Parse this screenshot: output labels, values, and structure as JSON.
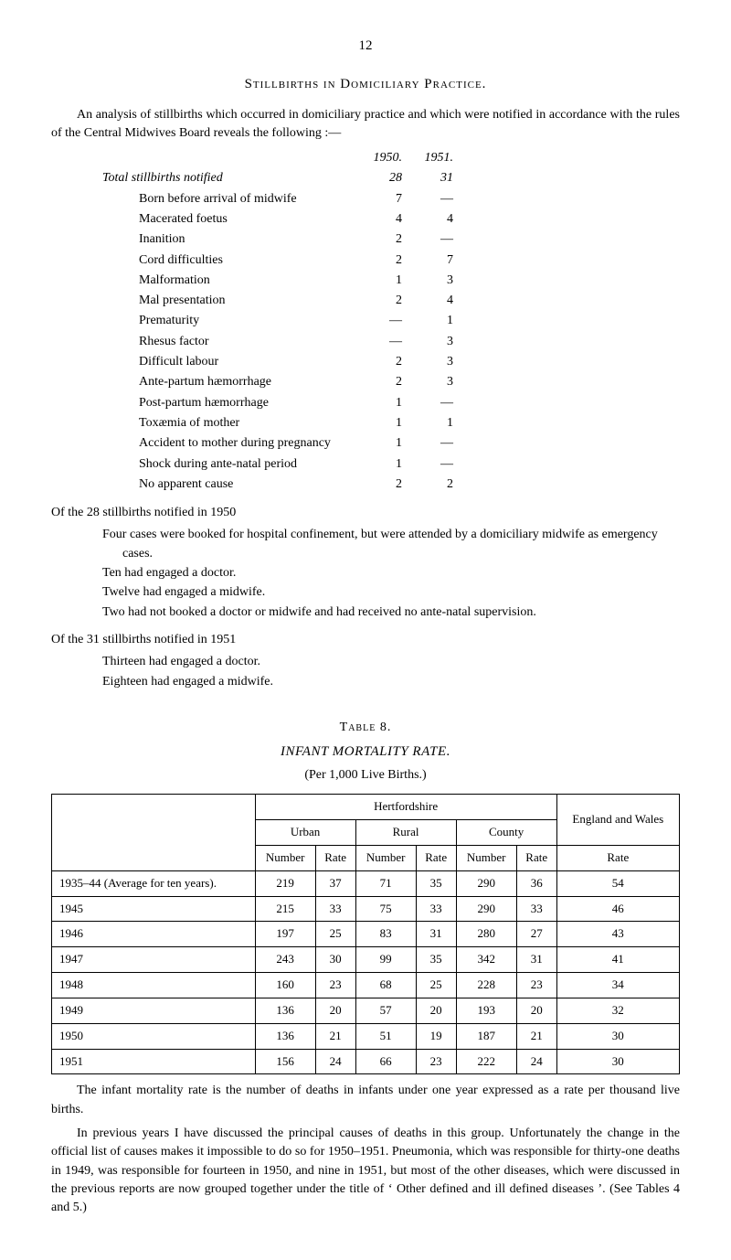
{
  "page_number": "12",
  "section_heading": "Stillbirths in Domiciliary Practice.",
  "intro_para": "An analysis of stillbirths which occurred in domiciliary practice and which were notified in accordance with the rules of the Central Midwives Board reveals the following :—",
  "stats": {
    "year_a": "1950.",
    "year_b": "1951.",
    "rows": [
      {
        "label": "Total stillbirths notified",
        "indent": 0,
        "italic": true,
        "a": "28",
        "b": "31"
      },
      {
        "label": "Born before arrival of midwife",
        "indent": 1,
        "a": "7",
        "b": "—"
      },
      {
        "label": "Macerated foetus",
        "indent": 1,
        "a": "4",
        "b": "4"
      },
      {
        "label": "Inanition",
        "indent": 1,
        "a": "2",
        "b": "—"
      },
      {
        "label": "Cord difficulties",
        "indent": 1,
        "a": "2",
        "b": "7"
      },
      {
        "label": "Malformation",
        "indent": 1,
        "a": "1",
        "b": "3"
      },
      {
        "label": "Mal presentation",
        "indent": 1,
        "a": "2",
        "b": "4"
      },
      {
        "label": "Prematurity",
        "indent": 1,
        "a": "—",
        "b": "1"
      },
      {
        "label": "Rhesus factor",
        "indent": 1,
        "a": "—",
        "b": "3"
      },
      {
        "label": "Difficult labour",
        "indent": 1,
        "a": "2",
        "b": "3"
      },
      {
        "label": "Ante-partum hæmorrhage",
        "indent": 1,
        "a": "2",
        "b": "3"
      },
      {
        "label": "Post-partum hæmorrhage",
        "indent": 1,
        "a": "1",
        "b": "—"
      },
      {
        "label": "Toxæmia of mother",
        "indent": 1,
        "a": "1",
        "b": "1"
      },
      {
        "label": "Accident to mother during pregnancy",
        "indent": 1,
        "a": "1",
        "b": "—"
      },
      {
        "label": "Shock during ante-natal period",
        "indent": 1,
        "a": "1",
        "b": "—"
      },
      {
        "label": "No apparent cause",
        "indent": 1,
        "a": "2",
        "b": "2"
      }
    ]
  },
  "sub_1950_heading": "Of the 28 stillbirths notified in 1950",
  "sub_1950_lines": [
    "Four cases were booked for hospital confinement, but were attended by a domiciliary midwife as emergency cases.",
    "Ten had engaged a doctor.",
    "Twelve had engaged a midwife.",
    "Two had not booked a doctor or midwife and had received no ante-natal supervision."
  ],
  "sub_1951_heading": "Of the 31 stillbirths notified in 1951",
  "sub_1951_lines": [
    "Thirteen had engaged a doctor.",
    "Eighteen had engaged a midwife."
  ],
  "table8": {
    "title": "Table 8.",
    "subtitle": "INFANT MORTALITY RATE.",
    "caption": "(Per 1,000 Live Births.)",
    "header_group": "Hertfordshire",
    "header_eng": "England and Wales",
    "col_groups": [
      "Urban",
      "Rural",
      "County"
    ],
    "subcols": [
      "Number",
      "Rate"
    ],
    "rate_col": "Rate",
    "rows": [
      {
        "label": "1935–44 (Average for ten years).",
        "vals": [
          "219",
          "37",
          "71",
          "35",
          "290",
          "36",
          "54"
        ]
      },
      {
        "label": "1945",
        "vals": [
          "215",
          "33",
          "75",
          "33",
          "290",
          "33",
          "46"
        ]
      },
      {
        "label": "1946",
        "vals": [
          "197",
          "25",
          "83",
          "31",
          "280",
          "27",
          "43"
        ]
      },
      {
        "label": "1947",
        "vals": [
          "243",
          "30",
          "99",
          "35",
          "342",
          "31",
          "41"
        ]
      },
      {
        "label": "1948",
        "vals": [
          "160",
          "23",
          "68",
          "25",
          "228",
          "23",
          "34"
        ]
      },
      {
        "label": "1949",
        "vals": [
          "136",
          "20",
          "57",
          "20",
          "193",
          "20",
          "32"
        ]
      },
      {
        "label": "1950",
        "vals": [
          "136",
          "21",
          "51",
          "19",
          "187",
          "21",
          "30"
        ]
      },
      {
        "label": "1951",
        "vals": [
          "156",
          "24",
          "66",
          "23",
          "222",
          "24",
          "30"
        ]
      }
    ]
  },
  "closing_para_1": "The infant mortality rate is the number of deaths in infants under one year expressed as a rate per thousand live births.",
  "closing_para_2": "In previous years I have discussed the principal causes of deaths in this group. Unfortunately the change in the official list of causes makes it impossible to do so for 1950–1951. Pneumonia, which was responsible for thirty-one deaths in 1949, was responsible for fourteen in 1950, and nine in 1951, but most of the other diseases, which were discussed in the previous reports are now grouped together under the title of ‘ Other defined and ill defined diseases ’. (See Tables 4 and 5.)"
}
